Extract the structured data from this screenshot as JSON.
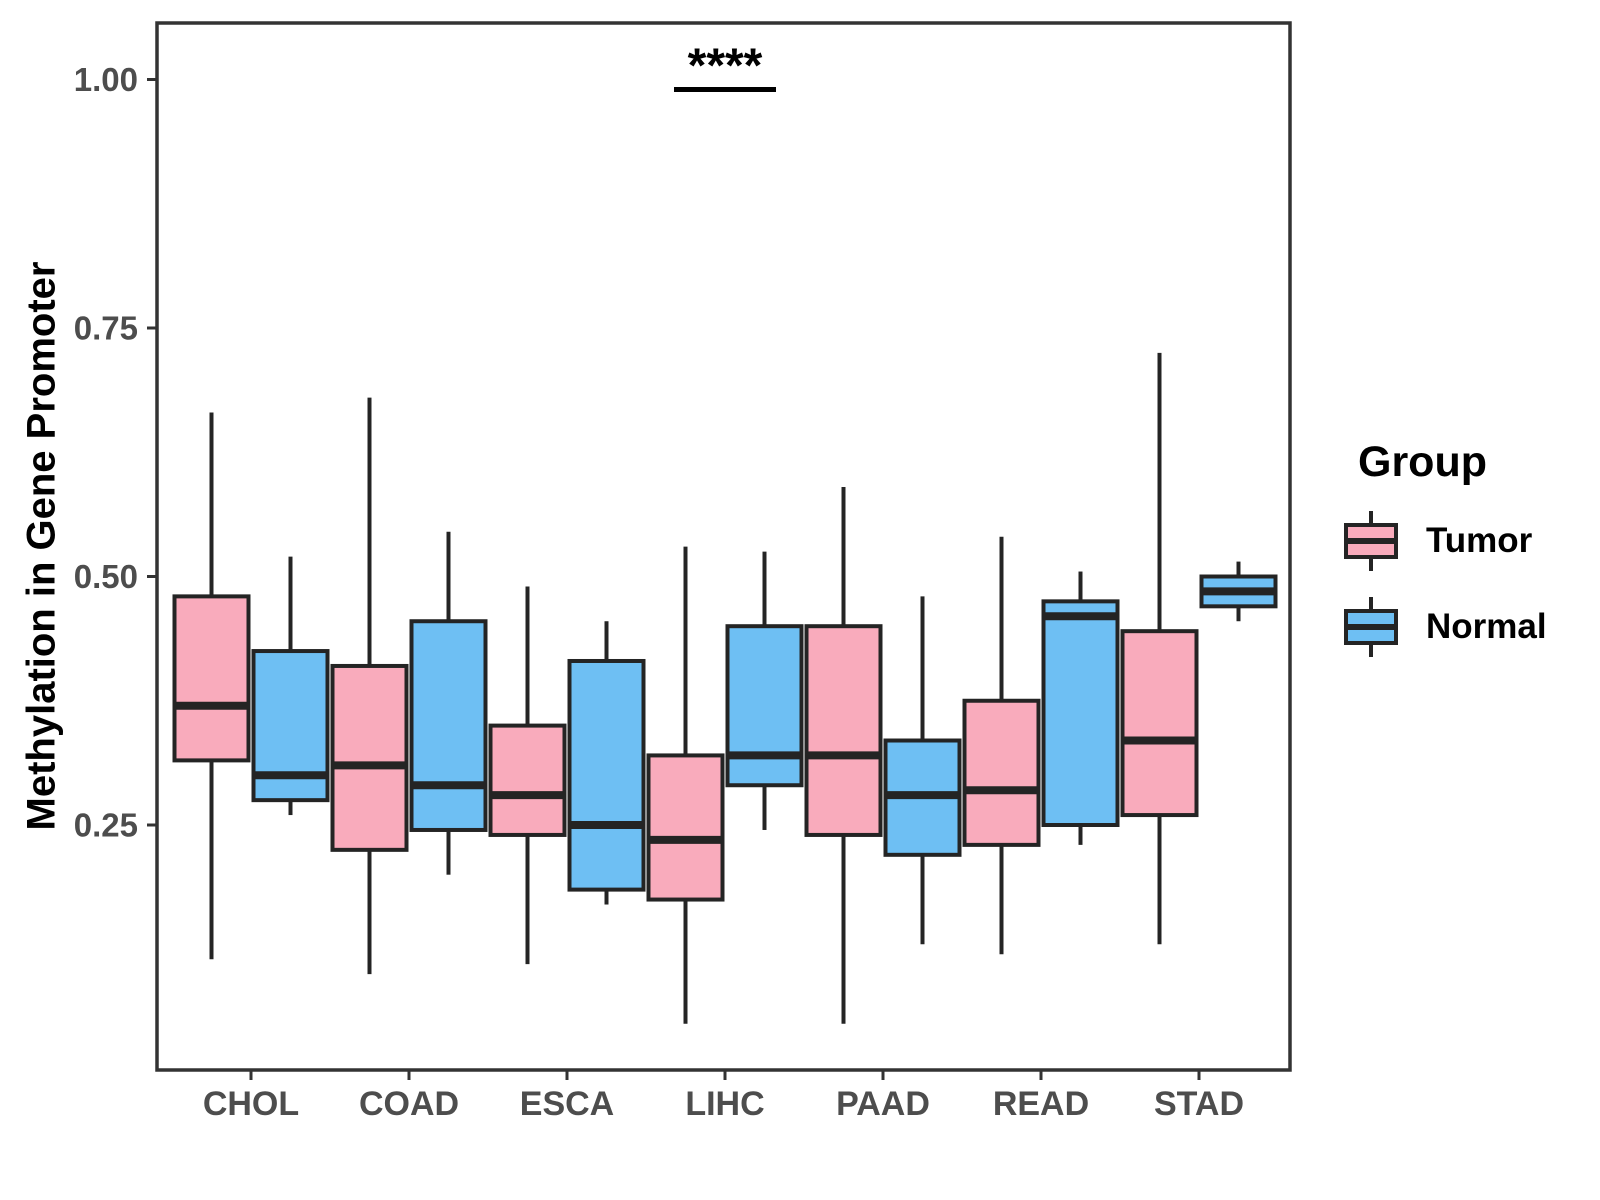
{
  "chart_data": {
    "type": "boxplot",
    "title": "",
    "xlabel": "",
    "ylabel": "Methylation in Gene Promoter",
    "categories": [
      "CHOL",
      "COAD",
      "ESCA",
      "LIHC",
      "PAAD",
      "READ",
      "STAD"
    ],
    "ylim": [
      0,
      1.06
    ],
    "yticks": [
      0.25,
      0.5,
      0.75,
      1.0
    ],
    "ytick_labels": [
      "0.25",
      "0.50",
      "0.75",
      "1.00"
    ],
    "grid": "off",
    "legend": {
      "title": "Group",
      "position": "right",
      "entries": [
        {
          "label": "Tumor",
          "color": "#F9ABBC"
        },
        {
          "label": "Normal",
          "color": "#6EBFF3"
        }
      ]
    },
    "annotation": {
      "text": "****",
      "category": "LIHC",
      "line_y": 0.99
    },
    "series": [
      {
        "name": "Tumor",
        "color": "#F9ABBC",
        "boxes": [
          {
            "category": "CHOL",
            "whisker_low": 0.115,
            "q1": 0.315,
            "median": 0.37,
            "q3": 0.48,
            "whisker_high": 0.665
          },
          {
            "category": "COAD",
            "whisker_low": 0.1,
            "q1": 0.225,
            "median": 0.31,
            "q3": 0.41,
            "whisker_high": 0.68
          },
          {
            "category": "ESCA",
            "whisker_low": 0.11,
            "q1": 0.24,
            "median": 0.28,
            "q3": 0.35,
            "whisker_high": 0.49
          },
          {
            "category": "LIHC",
            "whisker_low": 0.05,
            "q1": 0.175,
            "median": 0.235,
            "q3": 0.32,
            "whisker_high": 0.53
          },
          {
            "category": "PAAD",
            "whisker_low": 0.05,
            "q1": 0.24,
            "median": 0.32,
            "q3": 0.45,
            "whisker_high": 0.59
          },
          {
            "category": "READ",
            "whisker_low": 0.12,
            "q1": 0.23,
            "median": 0.285,
            "q3": 0.375,
            "whisker_high": 0.54
          },
          {
            "category": "STAD",
            "whisker_low": 0.13,
            "q1": 0.26,
            "median": 0.335,
            "q3": 0.445,
            "whisker_high": 0.725
          }
        ]
      },
      {
        "name": "Normal",
        "color": "#6EBFF3",
        "boxes": [
          {
            "category": "CHOL",
            "whisker_low": 0.26,
            "q1": 0.275,
            "median": 0.3,
            "q3": 0.425,
            "whisker_high": 0.52
          },
          {
            "category": "COAD",
            "whisker_low": 0.2,
            "q1": 0.245,
            "median": 0.29,
            "q3": 0.455,
            "whisker_high": 0.545
          },
          {
            "category": "ESCA",
            "whisker_low": 0.17,
            "q1": 0.185,
            "median": 0.25,
            "q3": 0.415,
            "whisker_high": 0.455
          },
          {
            "category": "LIHC",
            "whisker_low": 0.245,
            "q1": 0.29,
            "median": 0.32,
            "q3": 0.45,
            "whisker_high": 0.525
          },
          {
            "category": "PAAD",
            "whisker_low": 0.13,
            "q1": 0.22,
            "median": 0.28,
            "q3": 0.335,
            "whisker_high": 0.48
          },
          {
            "category": "READ",
            "whisker_low": 0.23,
            "q1": 0.25,
            "median": 0.46,
            "q3": 0.475,
            "whisker_high": 0.505
          },
          {
            "category": "STAD",
            "whisker_low": 0.455,
            "q1": 0.47,
            "median": 0.485,
            "q3": 0.5,
            "whisker_high": 0.515
          }
        ]
      }
    ],
    "style": {
      "box_stroke": "#242424",
      "panel_border": "#333333",
      "axis_text_color": "#4d4d4d",
      "title_text_color": "#000000",
      "background": "#ffffff"
    }
  }
}
